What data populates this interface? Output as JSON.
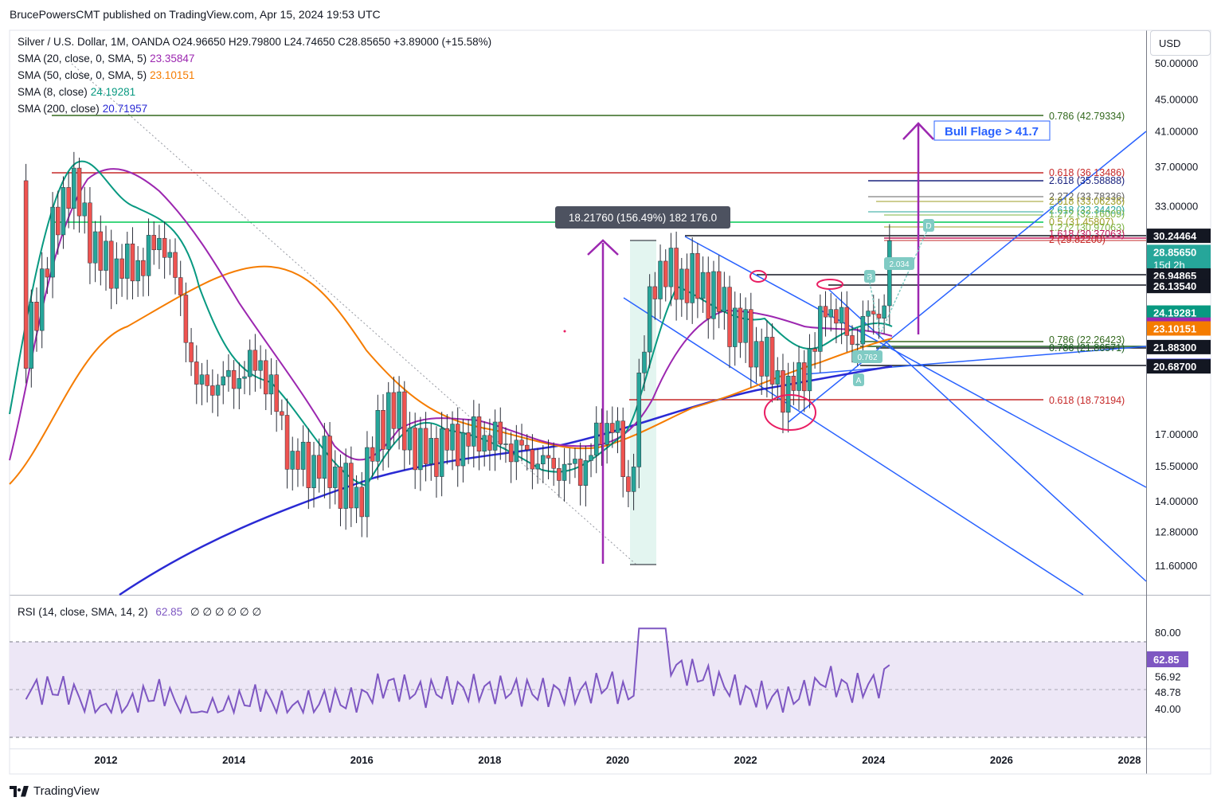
{
  "header": {
    "publisher_line": "BrucePowersCMT published on TradingView.com, Apr 15, 2024 19:53 UTC"
  },
  "legend": {
    "symbol_line": "Silver / U.S. Dollar, 1M, OANDA  O24.96650  H29.79800  L24.74650  C28.85650  +3.89000 (+15.58%)",
    "sma20_label": "SMA (20, close, 0, SMA, 5)",
    "sma20_value": "23.35847",
    "sma50_label": "SMA (50, close, 0, SMA, 5)",
    "sma50_value": "23.10151",
    "sma8_label": "SMA (8, close)",
    "sma8_value": "24.19281",
    "sma200_label": "SMA (200, close)",
    "sma200_value": "20.71957"
  },
  "currency_button": "USD",
  "rsi_legend": {
    "label": "RSI (14, close, SMA, 14, 2)",
    "value": "62.85",
    "extra": "∅ ∅ ∅ ∅ ∅ ∅"
  },
  "brand": "TradingView",
  "annotations": {
    "bull_flag": "Bull Flage > 41.7",
    "measure_box": "18.21760 (156.49%) 182 176.0",
    "fib_0786_top": "0.786 (42.79334)",
    "fib_0618_top": "0.618 (36.13486)",
    "fib_2618": "2.618 (35.58888)",
    "fib_2272": "2.272 (33.78336)",
    "fib_2618b": "2.618 (33.06236)",
    "fib_2618c": "2.618 (32.34420)",
    "fib_1272": "1.272 (32.16009)",
    "fib_05": "0.5 (31.45807)",
    "fib_1272b": "1.272 (30.97063)",
    "fib_1618": "1.618 (30.37063)",
    "fib_2": "2 (29.82200)",
    "fib_0786_low": "0.786 (22.26423)",
    "fib_0786_low2": "0.786 (21.86571)",
    "fib_0618_low": "0.618 (18.73194)",
    "label_B": "B",
    "label_A": "A",
    "label_D": "D",
    "label_0762": "0.762",
    "label_2034": "2.034"
  },
  "colors": {
    "candle_up": "#26a69a",
    "candle_down": "#ef5350",
    "sma8": "#089981",
    "sma20": "#9c27b0",
    "sma50": "#f57c00",
    "sma200": "#2a2ad4",
    "trendline": "#2962ff",
    "rsi": "#7e57c2",
    "rsi_band": "#ede7f6",
    "arrow": "#9c27b0",
    "red_line": "#c62828",
    "green_line": "#00c853"
  },
  "chart_data": {
    "type": "candlestick",
    "title": "Silver / U.S. Dollar, 1M, OANDA",
    "x_tick_labels": [
      "2012",
      "2014",
      "2016",
      "2018",
      "2020",
      "2022",
      "2024",
      "2026",
      "2028"
    ],
    "y_scale": "log",
    "y_tick_labels": [
      "50.00000",
      "45.00000",
      "41.00000",
      "37.00000",
      "33.00000",
      "17.00000",
      "15.50000",
      "14.00000",
      "12.80000",
      "11.60000"
    ],
    "y_price_tags": [
      {
        "value": "30.24464",
        "bg": "#131722",
        "fg": "#ffffff"
      },
      {
        "value": "28.85650",
        "bg": "#26a69a",
        "fg": "#ffffff",
        "note": "15d 2h"
      },
      {
        "value": "26.94865",
        "bg": "#131722",
        "fg": "#ffffff"
      },
      {
        "value": "26.13540",
        "bg": "#131722",
        "fg": "#ffffff"
      },
      {
        "value": "24.19281",
        "bg": "#089981",
        "fg": "#ffffff"
      },
      {
        "value": "23.35847",
        "bg": "#9c27b0",
        "fg": "#ffffff"
      },
      {
        "value": "23.10151",
        "bg": "#f57c00",
        "fg": "#ffffff"
      },
      {
        "value": "21.88300",
        "bg": "#131722",
        "fg": "#ffffff"
      },
      {
        "value": "20.71957",
        "bg": "#2a2ad4",
        "fg": "#ffffff"
      },
      {
        "value": "20.68700",
        "bg": "#131722",
        "fg": "#ffffff"
      }
    ],
    "rsi": {
      "value": 62.85,
      "ticks": [
        "80.00",
        "56.92",
        "48.78",
        "40.00"
      ],
      "band": [
        30,
        70
      ]
    },
    "series": [
      {
        "name": "Silver",
        "points": [
          [
            "2011-06",
            35.5
          ],
          [
            "2011-12",
            28.0
          ],
          [
            "2012-06",
            27.5
          ],
          [
            "2012-12",
            30.0
          ],
          [
            "2013-06",
            19.5
          ],
          [
            "2013-12",
            19.8
          ],
          [
            "2014-06",
            21.0
          ],
          [
            "2014-12",
            15.6
          ],
          [
            "2015-06",
            15.6
          ],
          [
            "2015-12",
            13.9
          ],
          [
            "2016-06",
            18.5
          ],
          [
            "2016-12",
            16.0
          ],
          [
            "2017-06",
            16.6
          ],
          [
            "2017-12",
            16.9
          ],
          [
            "2018-06",
            16.3
          ],
          [
            "2018-12",
            15.5
          ],
          [
            "2019-06",
            15.3
          ],
          [
            "2019-12",
            17.9
          ],
          [
            "2020-03",
            14.0
          ],
          [
            "2020-08",
            27.3
          ],
          [
            "2021-02",
            26.6
          ],
          [
            "2021-06",
            26.0
          ],
          [
            "2021-12",
            23.0
          ],
          [
            "2022-06",
            20.4
          ],
          [
            "2022-09",
            19.0
          ],
          [
            "2023-02",
            21.8
          ],
          [
            "2023-04",
            25.0
          ],
          [
            "2023-09",
            22.3
          ],
          [
            "2023-12",
            23.8
          ],
          [
            "2024-03",
            24.9
          ],
          [
            "2024-04",
            28.86
          ]
        ]
      }
    ]
  }
}
